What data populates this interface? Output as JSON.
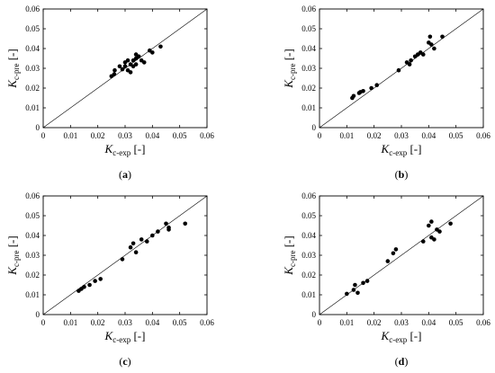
{
  "figure": {
    "axis_ticks": [
      "0",
      "0.01",
      "0.02",
      "0.03",
      "0.04",
      "0.05",
      "0.06"
    ],
    "x_label": {
      "main": "K",
      "sub": "c-exp",
      "unit": " [-]"
    },
    "y_label": {
      "main": "K",
      "sub": "c-pre",
      "unit": " [-]"
    }
  },
  "chart_data": [
    {
      "type": "scatter",
      "panel": "(a)",
      "panel_letter": "a",
      "xlabel": "Kc-exp [-]",
      "ylabel": "Kc-pre [-]",
      "xlim": [
        0,
        0.06
      ],
      "ylim": [
        0,
        0.06
      ],
      "ticks": [
        0,
        0.01,
        0.02,
        0.03,
        0.04,
        0.05,
        0.06
      ],
      "reference_line": "y = x",
      "grid": false,
      "x": [
        0.025,
        0.026,
        0.0262,
        0.028,
        0.029,
        0.03,
        0.03,
        0.031,
        0.031,
        0.032,
        0.032,
        0.033,
        0.033,
        0.034,
        0.034,
        0.034,
        0.035,
        0.036,
        0.037,
        0.039,
        0.04,
        0.043
      ],
      "y": [
        0.026,
        0.027,
        0.029,
        0.031,
        0.0295,
        0.033,
        0.031,
        0.034,
        0.029,
        0.032,
        0.028,
        0.034,
        0.031,
        0.035,
        0.037,
        0.032,
        0.036,
        0.034,
        0.033,
        0.039,
        0.038,
        0.041
      ]
    },
    {
      "type": "scatter",
      "panel": "(b)",
      "panel_letter": "b",
      "xlabel": "Kc-exp [-]",
      "ylabel": "Kc-pre [-]",
      "xlim": [
        0,
        0.06
      ],
      "ylim": [
        0,
        0.06
      ],
      "ticks": [
        0,
        0.01,
        0.02,
        0.03,
        0.04,
        0.05,
        0.06
      ],
      "reference_line": "y = x",
      "grid": false,
      "x": [
        0.012,
        0.0125,
        0.0145,
        0.015,
        0.016,
        0.019,
        0.021,
        0.029,
        0.032,
        0.033,
        0.0335,
        0.035,
        0.036,
        0.037,
        0.038,
        0.04,
        0.0405,
        0.041,
        0.042,
        0.045
      ],
      "y": [
        0.015,
        0.016,
        0.0175,
        0.018,
        0.0185,
        0.02,
        0.0215,
        0.029,
        0.033,
        0.032,
        0.034,
        0.036,
        0.037,
        0.038,
        0.037,
        0.043,
        0.046,
        0.042,
        0.04,
        0.046
      ]
    },
    {
      "type": "scatter",
      "panel": "(c)",
      "panel_letter": "c",
      "xlabel": "Kc-exp [-]",
      "ylabel": "Kc-pre [-]",
      "xlim": [
        0,
        0.06
      ],
      "ylim": [
        0,
        0.06
      ],
      "ticks": [
        0,
        0.01,
        0.02,
        0.03,
        0.04,
        0.05,
        0.06
      ],
      "reference_line": "y = x",
      "grid": false,
      "x": [
        0.013,
        0.014,
        0.015,
        0.017,
        0.019,
        0.021,
        0.029,
        0.032,
        0.033,
        0.034,
        0.036,
        0.038,
        0.04,
        0.042,
        0.045,
        0.046,
        0.046,
        0.052
      ],
      "y": [
        0.012,
        0.013,
        0.014,
        0.015,
        0.017,
        0.018,
        0.028,
        0.034,
        0.036,
        0.0315,
        0.038,
        0.037,
        0.04,
        0.042,
        0.046,
        0.043,
        0.044,
        0.046
      ]
    },
    {
      "type": "scatter",
      "panel": "(d)",
      "panel_letter": "d",
      "xlabel": "Kc-exp [-]",
      "ylabel": "Kc-pre [-]",
      "xlim": [
        0,
        0.06
      ],
      "ylim": [
        0,
        0.06
      ],
      "ticks": [
        0,
        0.01,
        0.02,
        0.03,
        0.04,
        0.05,
        0.06
      ],
      "reference_line": "y = x",
      "grid": false,
      "x": [
        0.01,
        0.0125,
        0.013,
        0.014,
        0.016,
        0.0175,
        0.025,
        0.027,
        0.028,
        0.038,
        0.04,
        0.041,
        0.041,
        0.042,
        0.043,
        0.044,
        0.048
      ],
      "y": [
        0.0105,
        0.0125,
        0.015,
        0.011,
        0.016,
        0.017,
        0.027,
        0.031,
        0.033,
        0.037,
        0.045,
        0.047,
        0.039,
        0.038,
        0.043,
        0.042,
        0.046
      ]
    }
  ]
}
